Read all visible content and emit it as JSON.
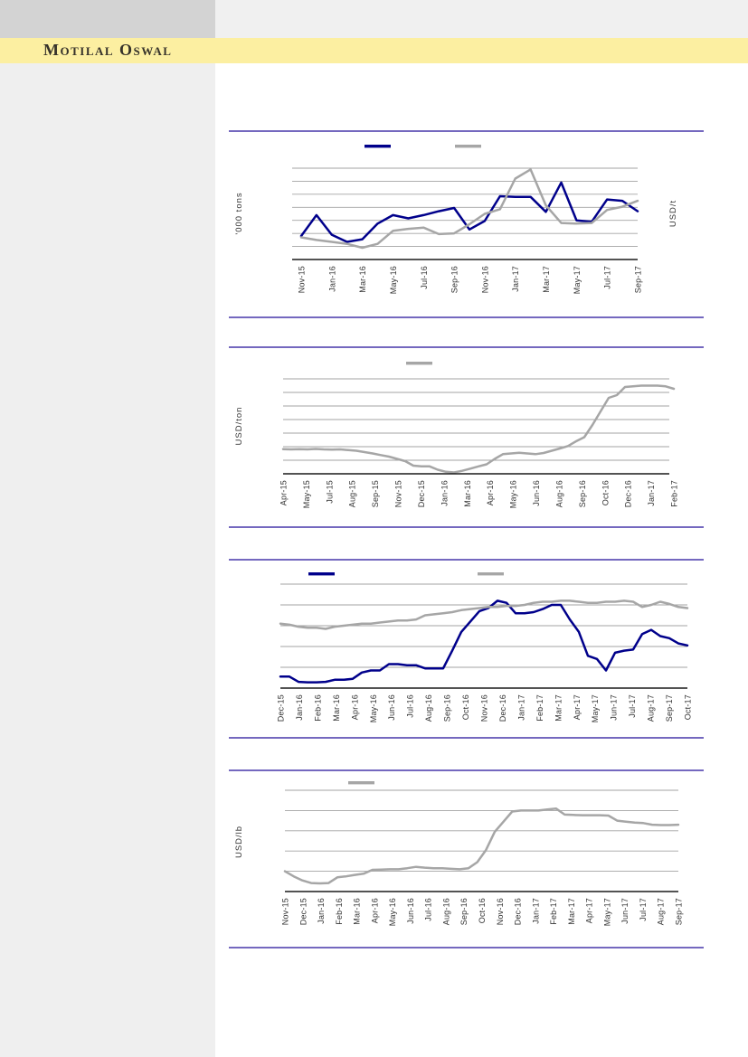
{
  "header": {
    "brand": "Motilal Oswal",
    "banner_color": "#FCEFA1",
    "corner_box_color": "#D3D3D3"
  },
  "colors": {
    "rule": "#7468BF",
    "navy_series": "#00008B",
    "gray_series": "#A6A6A6",
    "gridline": "#A3A3A3",
    "axis": "#1A1A1A",
    "label_text": "#333333"
  },
  "chart_data": [
    {
      "type": "line",
      "title": "",
      "ylabel_left": "'000 tons",
      "ylabel_right": "USD/t",
      "gridlines": 7,
      "ylim": [
        0,
        7
      ],
      "legend": [
        {
          "label": "",
          "color": "#00008B"
        },
        {
          "label": "",
          "color": "#A6A6A6"
        }
      ],
      "x_tick_labels": [
        "Nov-15",
        "Jan-16",
        "Mar-16",
        "May-16",
        "Jul-16",
        "Sep-16",
        "Nov-16",
        "Jan-17",
        "Mar-17",
        "May-17",
        "Jul-17",
        "Sep-17"
      ],
      "series": [
        {
          "color": "#00008B",
          "values": [
            1.8,
            3.4,
            1.9,
            1.35,
            1.55,
            2.75,
            3.4,
            3.15,
            3.4,
            3.7,
            3.95,
            2.3,
            2.95,
            4.85,
            4.8,
            4.8,
            3.65,
            5.9,
            3.0,
            2.9,
            4.6,
            4.5,
            3.7
          ]
        },
        {
          "color": "#A6A6A6",
          "values": [
            1.7,
            1.5,
            1.35,
            1.2,
            0.9,
            1.2,
            2.2,
            2.35,
            2.45,
            1.95,
            2.0,
            2.7,
            3.5,
            3.85,
            6.2,
            6.9,
            4.15,
            2.8,
            2.75,
            2.8,
            3.8,
            4.05,
            4.5
          ]
        }
      ]
    },
    {
      "type": "line",
      "title": "",
      "ylabel_left": "USD/ton",
      "ylabel_right": "",
      "gridlines": 7,
      "ylim": [
        0,
        7
      ],
      "legend": [
        {
          "label": "",
          "color": "#A6A6A6"
        }
      ],
      "x_tick_labels": [
        "Apr-15",
        "May-15",
        "Jul-15",
        "Aug-15",
        "Sep-15",
        "Nov-15",
        "Dec-15",
        "Jan-16",
        "Mar-16",
        "Apr-16",
        "May-16",
        "Jun-16",
        "Aug-16",
        "Sep-16",
        "Oct-16",
        "Dec-16",
        "Jan-17",
        "Feb-17"
      ],
      "series": [
        {
          "color": "#A6A6A6",
          "values": [
            1.82,
            1.8,
            1.82,
            1.8,
            1.83,
            1.8,
            1.78,
            1.8,
            1.75,
            1.7,
            1.6,
            1.5,
            1.38,
            1.27,
            1.1,
            0.93,
            0.6,
            0.55,
            0.55,
            0.3,
            0.15,
            0.1,
            0.22,
            0.38,
            0.55,
            0.7,
            1.1,
            1.45,
            1.5,
            1.55,
            1.5,
            1.45,
            1.53,
            1.7,
            1.87,
            2.05,
            2.4,
            2.7,
            3.6,
            4.6,
            5.6,
            5.8,
            6.4,
            6.45,
            6.5,
            6.5,
            6.5,
            6.45,
            6.27
          ]
        }
      ]
    },
    {
      "type": "line",
      "title": "",
      "ylabel_left": "",
      "ylabel_right": "",
      "gridlines": 5,
      "ylim": [
        0,
        5
      ],
      "legend": [
        {
          "label": "",
          "color": "#00008B"
        },
        {
          "label": "",
          "color": "#A6A6A6"
        }
      ],
      "x_tick_labels": [
        "Dec-15",
        "Jan-16",
        "Feb-16",
        "Mar-16",
        "Apr-16",
        "May-16",
        "Jun-16",
        "Jul-16",
        "Aug-16",
        "Sep-16",
        "Oct-16",
        "Nov-16",
        "Dec-16",
        "Jan-17",
        "Feb-17",
        "Mar-17",
        "Apr-17",
        "May-17",
        "Jun-17",
        "Jul-17",
        "Aug-17",
        "Sep-17",
        "Oct-17"
      ],
      "series": [
        {
          "color": "#00008B",
          "values": [
            0.55,
            0.55,
            0.3,
            0.28,
            0.28,
            0.3,
            0.4,
            0.4,
            0.45,
            0.75,
            0.85,
            0.85,
            1.15,
            1.15,
            1.1,
            1.1,
            0.95,
            0.95,
            0.95,
            1.8,
            2.7,
            3.2,
            3.7,
            3.85,
            4.2,
            4.1,
            3.6,
            3.6,
            3.65,
            3.8,
            4.0,
            4.0,
            3.3,
            2.7,
            1.55,
            1.4,
            0.85,
            1.7,
            1.8,
            1.85,
            2.6,
            2.8,
            2.5,
            2.4,
            2.15,
            2.05
          ]
        },
        {
          "color": "#A6A6A6",
          "values": [
            3.1,
            3.05,
            2.95,
            2.9,
            2.9,
            2.85,
            2.95,
            3.0,
            3.05,
            3.1,
            3.1,
            3.15,
            3.2,
            3.25,
            3.25,
            3.3,
            3.5,
            3.55,
            3.6,
            3.65,
            3.75,
            3.8,
            3.85,
            3.9,
            3.9,
            3.95,
            3.95,
            4.0,
            4.1,
            4.15,
            4.15,
            4.2,
            4.2,
            4.15,
            4.1,
            4.1,
            4.15,
            4.15,
            4.2,
            4.15,
            3.9,
            4.0,
            4.15,
            4.05,
            3.9,
            3.85
          ]
        }
      ]
    },
    {
      "type": "line",
      "title": "",
      "ylabel_left": "USD/lb",
      "ylabel_right": "",
      "gridlines": 5,
      "ylim": [
        0,
        5
      ],
      "legend": [
        {
          "label": "",
          "color": "#A6A6A6"
        }
      ],
      "x_tick_labels": [
        "Nov-15",
        "Dec-15",
        "Jan-16",
        "Feb-16",
        "Mar-16",
        "Apr-16",
        "May-16",
        "Jun-16",
        "Jul-16",
        "Aug-16",
        "Sep-16",
        "Oct-16",
        "Nov-16",
        "Dec-16",
        "Jan-17",
        "Feb-17",
        "Mar-17",
        "Apr-17",
        "May-17",
        "Jun-17",
        "Jul-17",
        "Aug-17",
        "Sep-17"
      ],
      "series": [
        {
          "color": "#A6A6A6",
          "values": [
            1.0,
            0.75,
            0.55,
            0.42,
            0.4,
            0.42,
            0.7,
            0.75,
            0.82,
            0.88,
            1.07,
            1.08,
            1.1,
            1.1,
            1.15,
            1.22,
            1.18,
            1.15,
            1.15,
            1.12,
            1.1,
            1.15,
            1.45,
            2.05,
            2.95,
            3.45,
            3.95,
            4.0,
            4.0,
            4.0,
            4.05,
            4.1,
            3.8,
            3.78,
            3.77,
            3.77,
            3.77,
            3.75,
            3.5,
            3.45,
            3.4,
            3.38,
            3.3,
            3.28,
            3.28,
            3.3
          ]
        }
      ]
    }
  ]
}
